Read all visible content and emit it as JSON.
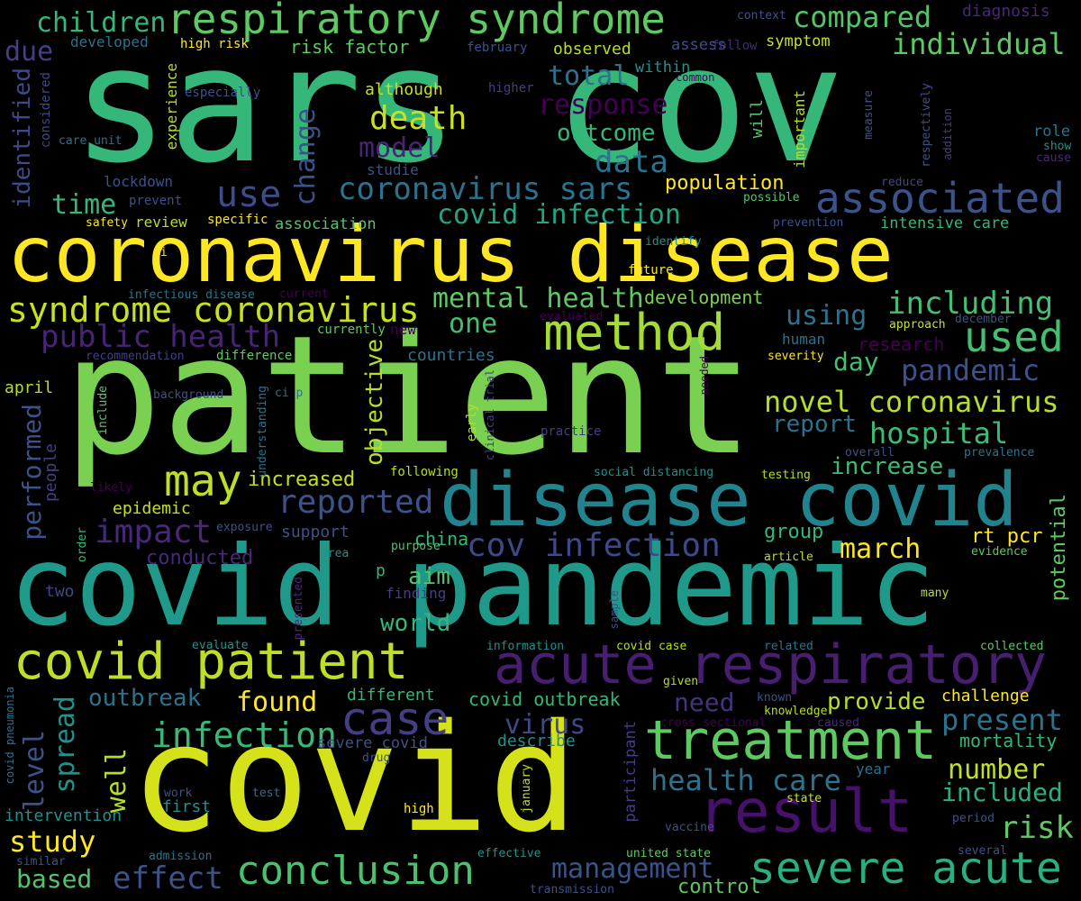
{
  "palette": {
    "bg": "#000000",
    "purple": "#440154",
    "indigo": "#3b528b",
    "teal": "#21918c",
    "green": "#5ec962",
    "yellow": "#fde725"
  },
  "words": [
    {
      "text": "sars cov"
    },
    {
      "text": "patient"
    },
    {
      "text": "covid pandemic"
    },
    {
      "text": "covid"
    },
    {
      "text": "coronavirus disease"
    },
    {
      "text": "disease covid"
    },
    {
      "text": "acute respiratory"
    },
    {
      "text": "covid patient"
    },
    {
      "text": "result"
    },
    {
      "text": "treatment"
    },
    {
      "text": "respiratory syndrome"
    },
    {
      "text": "method"
    },
    {
      "text": "severe acute"
    },
    {
      "text": "conclusion"
    },
    {
      "text": "associated"
    },
    {
      "text": "case"
    },
    {
      "text": "syndrome coronavirus"
    },
    {
      "text": "used"
    },
    {
      "text": "may"
    },
    {
      "text": "infection"
    },
    {
      "text": "including"
    },
    {
      "text": "coronavirus sars"
    },
    {
      "text": "novel coronavirus"
    },
    {
      "text": "cov infection"
    },
    {
      "text": "covid infection"
    },
    {
      "text": "death"
    },
    {
      "text": "use"
    },
    {
      "text": "data"
    },
    {
      "text": "impact"
    },
    {
      "text": "reported"
    },
    {
      "text": "public health"
    },
    {
      "text": "effect"
    },
    {
      "text": "study"
    },
    {
      "text": "risk"
    },
    {
      "text": "pandemic"
    },
    {
      "text": "hospital"
    },
    {
      "text": "health care"
    },
    {
      "text": "management"
    },
    {
      "text": "present"
    },
    {
      "text": "number"
    },
    {
      "text": "included"
    },
    {
      "text": "compared"
    },
    {
      "text": "individual"
    },
    {
      "text": "children"
    },
    {
      "text": "model"
    },
    {
      "text": "mental health"
    },
    {
      "text": "using"
    },
    {
      "text": "total"
    },
    {
      "text": "response"
    },
    {
      "text": "outcome"
    },
    {
      "text": "time"
    },
    {
      "text": "virus"
    },
    {
      "text": "found"
    },
    {
      "text": "outbreak"
    },
    {
      "text": "based"
    },
    {
      "text": "well"
    },
    {
      "text": "spread"
    },
    {
      "text": "level"
    },
    {
      "text": "performed"
    },
    {
      "text": "change"
    },
    {
      "text": "objective"
    },
    {
      "text": "identified"
    },
    {
      "text": "due"
    },
    {
      "text": "one"
    },
    {
      "text": "day"
    },
    {
      "text": "march"
    },
    {
      "text": "increase"
    },
    {
      "text": "report"
    },
    {
      "text": "need"
    },
    {
      "text": "provide"
    },
    {
      "text": "world"
    },
    {
      "text": "aim"
    },
    {
      "text": "increased"
    },
    {
      "text": "conducted"
    },
    {
      "text": "potential"
    },
    {
      "text": "control"
    },
    {
      "text": "population"
    },
    {
      "text": "development"
    },
    {
      "text": "research"
    },
    {
      "text": "mortality"
    },
    {
      "text": "group"
    },
    {
      "text": "rt pcr"
    },
    {
      "text": "china"
    },
    {
      "text": "support"
    },
    {
      "text": "epidemic"
    },
    {
      "text": "covid outbreak"
    },
    {
      "text": "different"
    },
    {
      "text": "describe"
    },
    {
      "text": "severe covid"
    },
    {
      "text": "two"
    },
    {
      "text": "people"
    },
    {
      "text": "intervention"
    },
    {
      "text": "first"
    },
    {
      "text": "year"
    },
    {
      "text": "challenge"
    },
    {
      "text": "risk factor"
    },
    {
      "text": "developed"
    },
    {
      "text": "high risk"
    },
    {
      "text": "observed"
    },
    {
      "text": "assess"
    },
    {
      "text": "follow"
    },
    {
      "text": "symptom"
    },
    {
      "text": "diagnosis"
    },
    {
      "text": "context"
    },
    {
      "text": "within"
    },
    {
      "text": "common"
    },
    {
      "text": "although"
    },
    {
      "text": "higher"
    },
    {
      "text": "february"
    },
    {
      "text": "especially"
    },
    {
      "text": "considered"
    },
    {
      "text": "experience"
    },
    {
      "text": "care unit"
    },
    {
      "text": "studie"
    },
    {
      "text": "will"
    },
    {
      "text": "important"
    },
    {
      "text": "measure"
    },
    {
      "text": "role"
    },
    {
      "text": "show"
    },
    {
      "text": "cause"
    },
    {
      "text": "respectively"
    },
    {
      "text": "addition"
    },
    {
      "text": "lockdown"
    },
    {
      "text": "prevent"
    },
    {
      "text": "reduce"
    },
    {
      "text": "possible"
    },
    {
      "text": "safety"
    },
    {
      "text": "review"
    },
    {
      "text": "specific"
    },
    {
      "text": "association"
    },
    {
      "text": "prevention"
    },
    {
      "text": "intensive care"
    },
    {
      "text": "ci"
    },
    {
      "text": "identify"
    },
    {
      "text": "future"
    },
    {
      "text": "infectious disease"
    },
    {
      "text": "current"
    },
    {
      "text": "evaluated"
    },
    {
      "text": "approach"
    },
    {
      "text": "december"
    },
    {
      "text": "currently"
    },
    {
      "text": "new"
    },
    {
      "text": "human"
    },
    {
      "text": "recommendation"
    },
    {
      "text": "difference"
    },
    {
      "text": "countries"
    },
    {
      "text": "needed"
    },
    {
      "text": "severity"
    },
    {
      "text": "background"
    },
    {
      "text": "ci p"
    },
    {
      "text": "understanding"
    },
    {
      "text": "include"
    },
    {
      "text": "clinical trial"
    },
    {
      "text": "early"
    },
    {
      "text": "practice"
    },
    {
      "text": "april"
    },
    {
      "text": "overall"
    },
    {
      "text": "prevalence"
    },
    {
      "text": "following"
    },
    {
      "text": "social distancing"
    },
    {
      "text": "testing"
    },
    {
      "text": "likely"
    },
    {
      "text": "exposure"
    },
    {
      "text": "order"
    },
    {
      "text": "area"
    },
    {
      "text": "purpose"
    },
    {
      "text": "article"
    },
    {
      "text": "evidence"
    },
    {
      "text": "p"
    },
    {
      "text": "finding"
    },
    {
      "text": "presented"
    },
    {
      "text": "sample"
    },
    {
      "text": "many"
    },
    {
      "text": "evaluate"
    },
    {
      "text": "information"
    },
    {
      "text": "covid case"
    },
    {
      "text": "related"
    },
    {
      "text": "collected"
    },
    {
      "text": "given"
    },
    {
      "text": "known"
    },
    {
      "text": "knowledge"
    },
    {
      "text": "cross sectional"
    },
    {
      "text": "caused"
    },
    {
      "text": "covid pneumonia"
    },
    {
      "text": "drug"
    },
    {
      "text": "participant"
    },
    {
      "text": "work"
    },
    {
      "text": "test"
    },
    {
      "text": "january"
    },
    {
      "text": "high"
    },
    {
      "text": "state"
    },
    {
      "text": "vaccine"
    },
    {
      "text": "period"
    },
    {
      "text": "admission"
    },
    {
      "text": "similar"
    },
    {
      "text": "effective"
    },
    {
      "text": "united state"
    },
    {
      "text": "several"
    },
    {
      "text": "transmission"
    }
  ]
}
